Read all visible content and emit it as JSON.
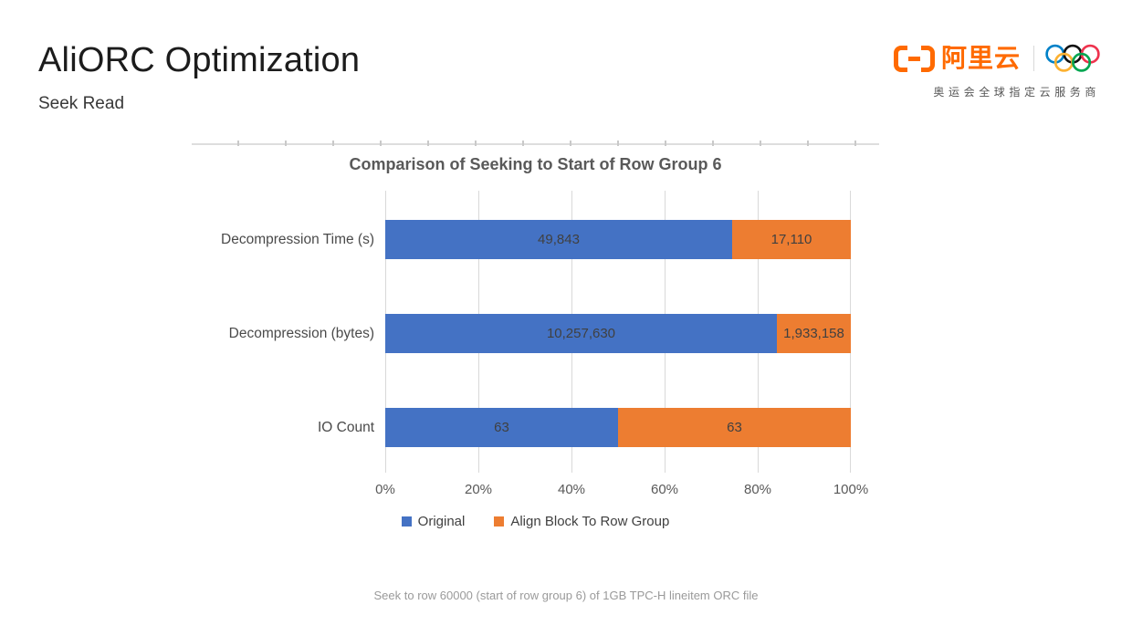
{
  "slide": {
    "title": "AliORC Optimization",
    "subtitle": "Seek Read",
    "caption": "Seek to row 60000 (start of row group 6) of 1GB TPC-H lineitem ORC file"
  },
  "logo": {
    "brand": "阿里云",
    "tagline": "奥运会全球指定云服务商",
    "brand_color": "#FF6A00",
    "ring_colors": [
      "#0081C8",
      "#111111",
      "#EE334E",
      "#FCB131",
      "#00A651"
    ]
  },
  "chart_data": {
    "type": "bar",
    "orientation": "horizontal",
    "stacked": true,
    "normalized_to_100_percent": true,
    "title": "Comparison of Seeking to Start of Row Group 6",
    "categories": [
      "Decompression Time (s)",
      "Decompression (bytes)",
      "IO Count"
    ],
    "series": [
      {
        "name": "Original",
        "color": "#4472C4",
        "values": [
          49843,
          10257630,
          63
        ],
        "labels": [
          "49,843",
          "10,257,630",
          "63"
        ]
      },
      {
        "name": "Align Block To Row Group",
        "color": "#ED7D31",
        "values": [
          17110,
          1933158,
          63
        ],
        "labels": [
          "17,110",
          "1,933,158",
          "63"
        ]
      }
    ],
    "x_ticks": [
      "0%",
      "20%",
      "40%",
      "60%",
      "80%",
      "100%"
    ],
    "xlim": [
      0,
      1
    ],
    "grid": true,
    "legend_position": "bottom"
  }
}
